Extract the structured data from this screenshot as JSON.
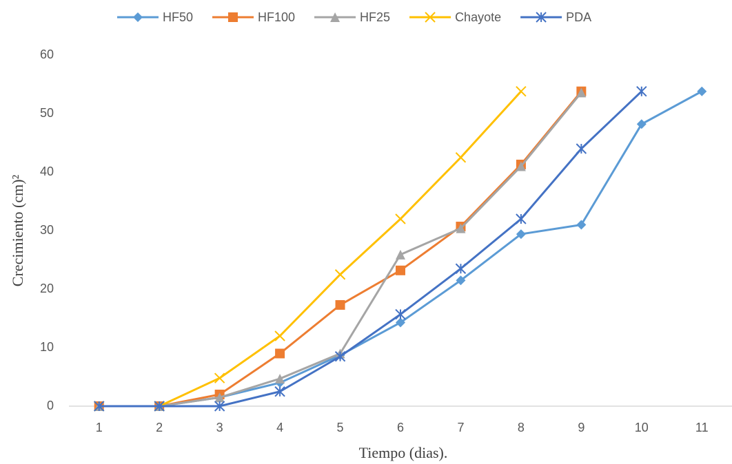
{
  "chart_data": {
    "type": "line",
    "x_label": "Tiempo (dias).",
    "y_label": "Crecimiento (cm)²",
    "categories": [
      "1",
      "2",
      "3",
      "4",
      "5",
      "6",
      "7",
      "8",
      "9",
      "10",
      "11"
    ],
    "ylim": [
      0,
      60
    ],
    "yticks": [
      0,
      10,
      20,
      30,
      40,
      50,
      60
    ],
    "grid": false,
    "legend": "top",
    "series": [
      {
        "name": "HF50",
        "color": "#5b9bd5",
        "marker": "diamond",
        "values": [
          0,
          0,
          1.5,
          4,
          8.7,
          14.3,
          21.5,
          29.4,
          31,
          48.2,
          53.8
        ]
      },
      {
        "name": "HF100",
        "color": "#ed7d31",
        "marker": "square",
        "values": [
          0,
          0,
          2,
          9,
          17.3,
          23.2,
          30.7,
          41.3,
          53.8,
          null,
          null
        ]
      },
      {
        "name": "HF25",
        "color": "#a5a5a5",
        "marker": "triangle",
        "values": [
          0,
          0,
          1.5,
          4.7,
          9,
          25.9,
          30.4,
          41,
          53.6,
          null,
          null
        ]
      },
      {
        "name": "Chayote",
        "color": "#ffc000",
        "marker": "x",
        "values": [
          0,
          0,
          4.8,
          12,
          22.5,
          32,
          42.5,
          53.8,
          null,
          null,
          null
        ]
      },
      {
        "name": "PDA",
        "color": "#4472c4",
        "marker": "star",
        "values": [
          0,
          0,
          0,
          2.5,
          8.5,
          15.7,
          23.5,
          32,
          44,
          53.8,
          null
        ]
      }
    ]
  }
}
